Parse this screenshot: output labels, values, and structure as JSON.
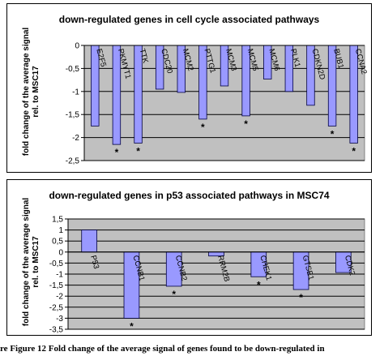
{
  "chart_data": [
    {
      "type": "bar",
      "title": "down-regulated genes in cell cycle associated pathways",
      "ylabel": "fold change of the average signal rel. to MSC17",
      "ylabel_lines": [
        "fold change of the average signal",
        "rel. to MSC17"
      ],
      "ylim": [
        -2.5,
        0
      ],
      "yticks": [
        0,
        -0.5,
        -1,
        -1.5,
        -2,
        -2.5
      ],
      "ytick_labels": [
        "0",
        "-0,5",
        "-1",
        "-1,5",
        "-2",
        "-2,5"
      ],
      "categories": [
        "E2F5",
        "PKMYT1",
        "TTK",
        "CDC20",
        "MCM2",
        "PTTG1",
        "MCM3",
        "MCM5",
        "MCM6",
        "PLK1",
        "CDKN2D",
        "BUB1",
        "CCNA2"
      ],
      "values": [
        -1.75,
        -2.15,
        -2.12,
        -0.95,
        -1.02,
        -1.6,
        -0.88,
        -1.53,
        -0.73,
        -1.0,
        -1.3,
        -1.75,
        -2.12
      ],
      "significant": [
        false,
        true,
        true,
        false,
        false,
        true,
        false,
        true,
        false,
        false,
        false,
        true,
        true
      ],
      "significance_marker": "*",
      "grid": true,
      "plot_background": "#c0c0c0",
      "bar_color": "#9999ff"
    },
    {
      "type": "bar",
      "title": "down-regulated genes in p53 associated pathways in MSC74",
      "ylabel": "fold change of the average signal rel. to MSC17",
      "ylabel_lines": [
        "fold change of the average signal",
        "rel. to MSC17"
      ],
      "ylim": [
        -3.5,
        1.5
      ],
      "yticks": [
        1.5,
        1,
        0.5,
        0,
        -0.5,
        -1,
        -1.5,
        -2,
        -2.5,
        -3,
        -3.5
      ],
      "ytick_labels": [
        "1,5",
        "1",
        "0,5",
        "0",
        "-0,5",
        "-1",
        "-1,5",
        "-2",
        "-2,5",
        "-3",
        "-3,5"
      ],
      "categories": [
        "P53",
        "CCNB1",
        "CCNB2",
        "RRM2B",
        "CHEK1",
        "GTSE1",
        "CDK2"
      ],
      "values": [
        1.0,
        -3.0,
        -1.55,
        -0.18,
        -1.12,
        -1.7,
        -0.93
      ],
      "significant": [
        false,
        true,
        true,
        false,
        true,
        true,
        false
      ],
      "significance_marker": "*",
      "grid": true,
      "plot_background": "#c0c0c0",
      "bar_color": "#9999ff"
    }
  ],
  "caption": "re Figure 12 Fold change of the average signal of genes found to be down-regulated in"
}
